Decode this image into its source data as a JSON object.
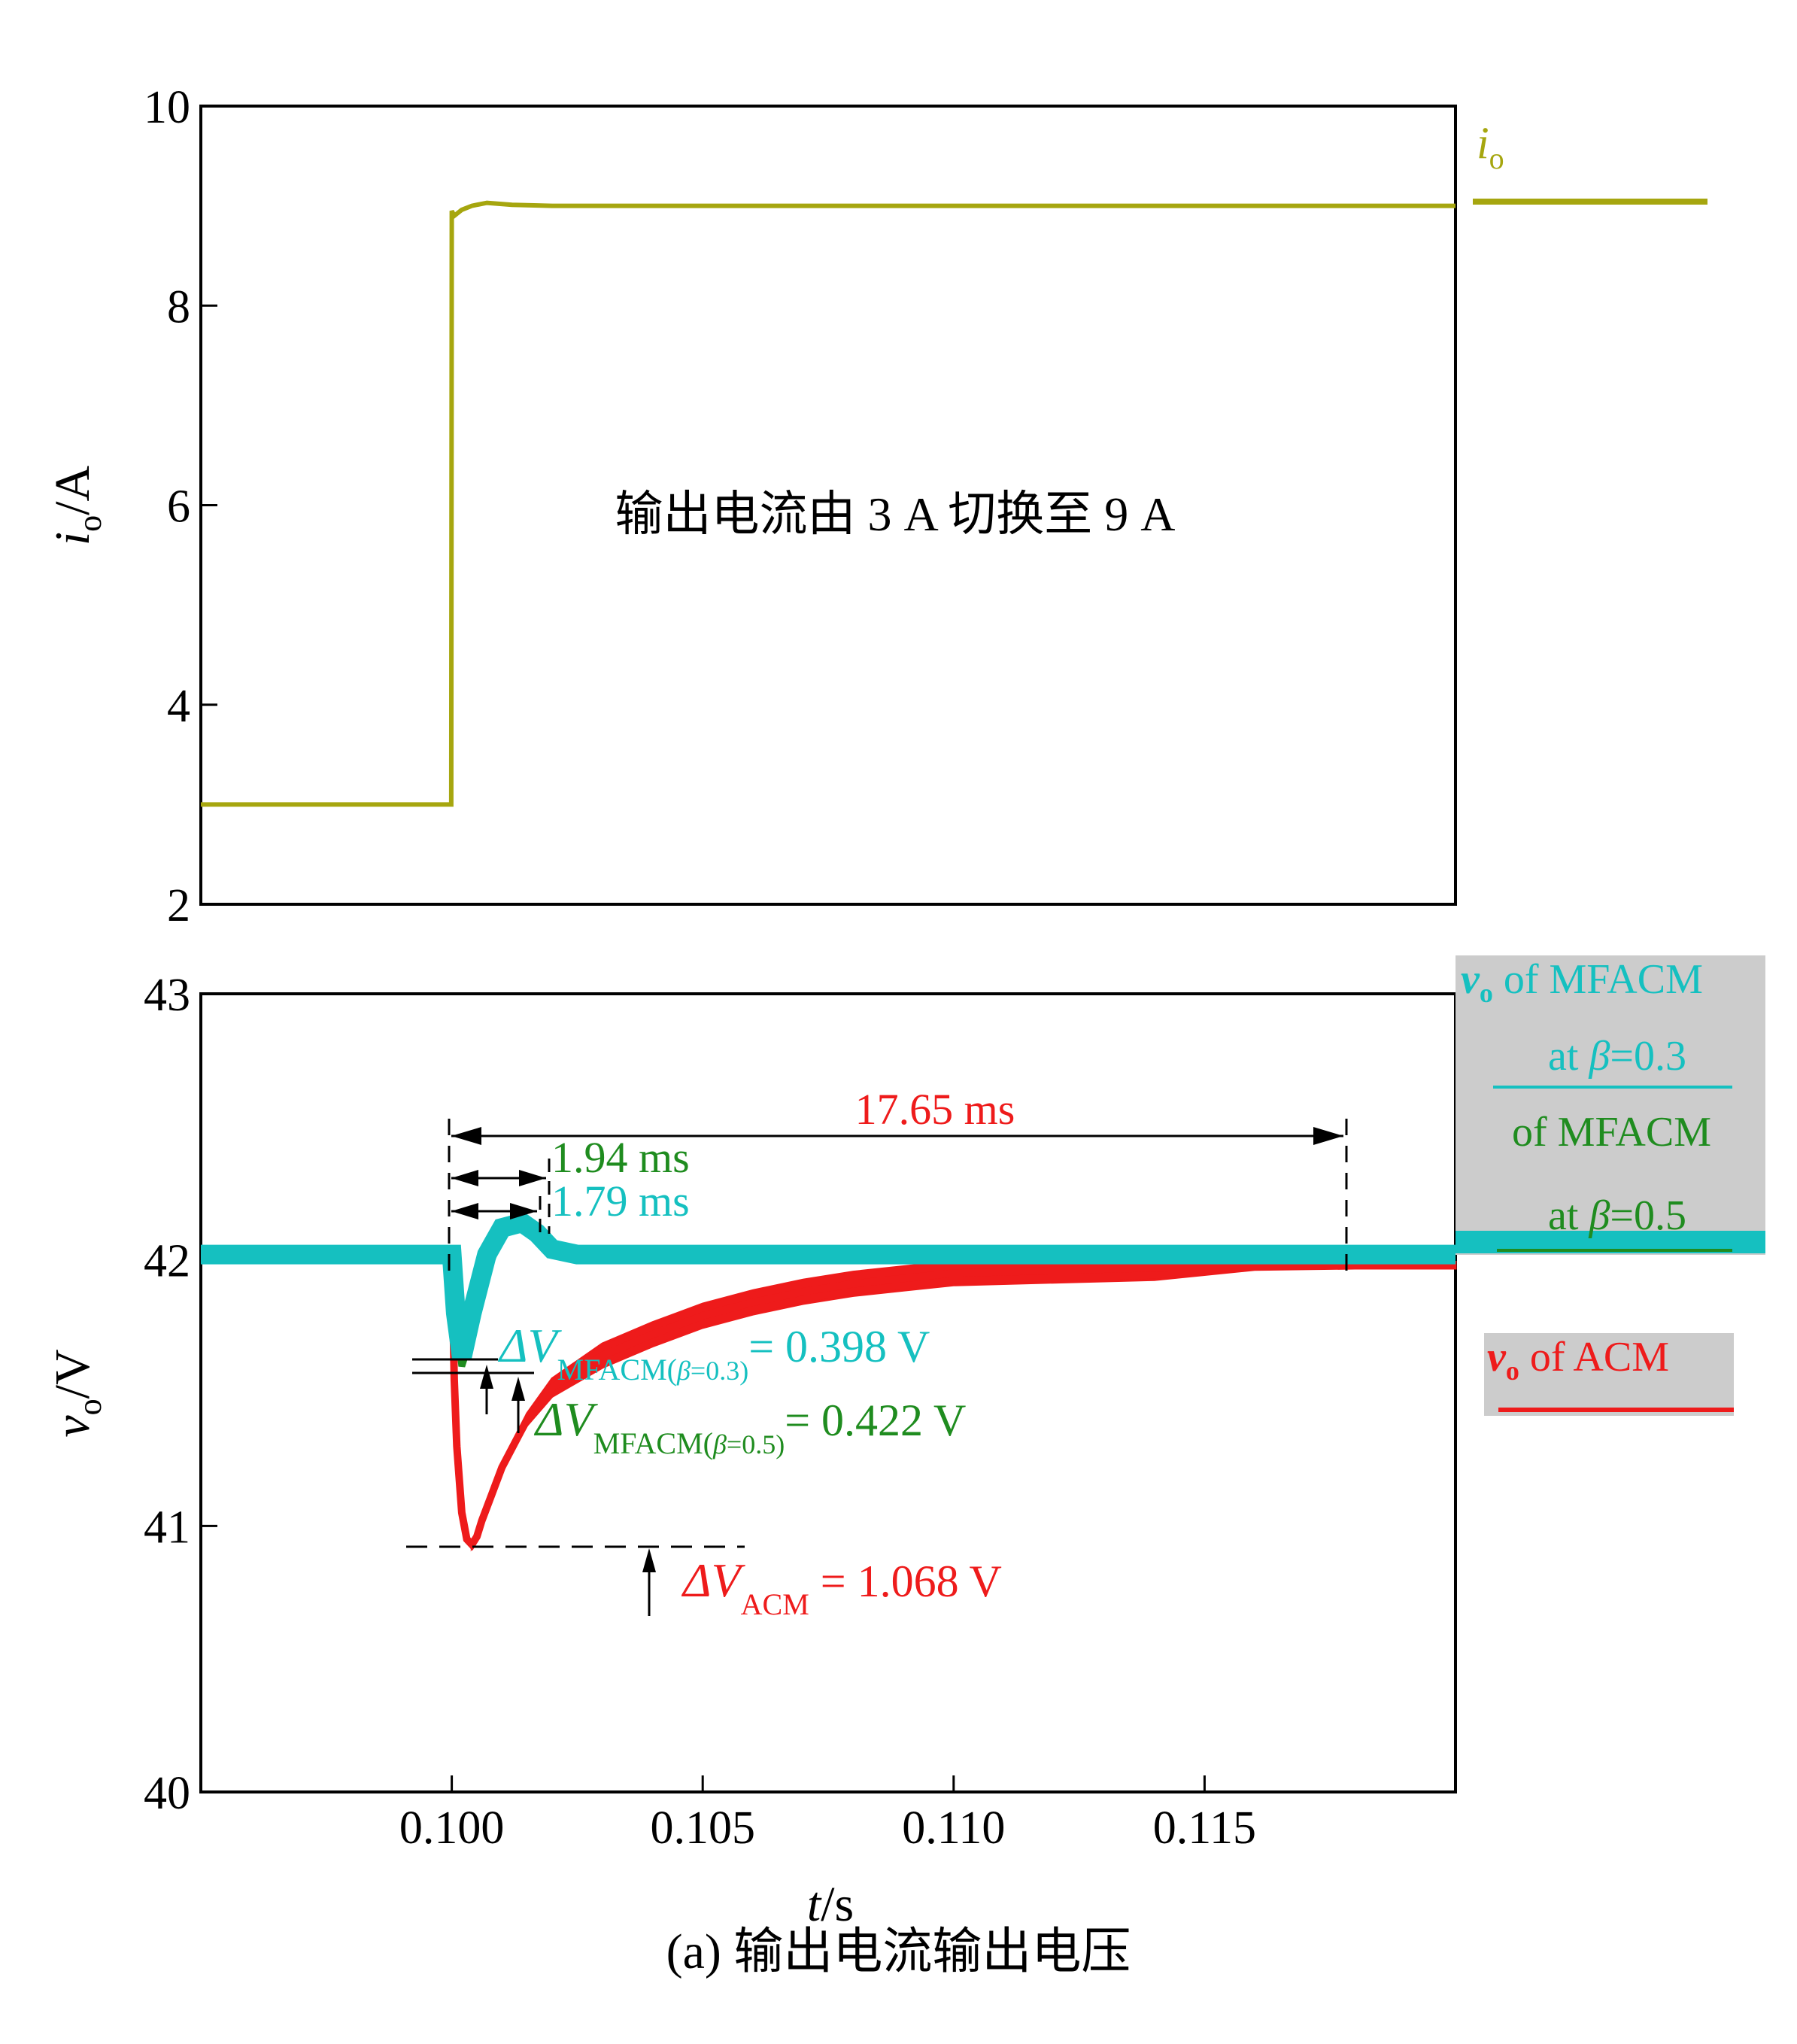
{
  "caption": "(a) 输出电流输出电压",
  "chart_data": [
    {
      "type": "line",
      "title": "",
      "xlabel": "",
      "ylabel_main": "i",
      "ylabel_sub": "o",
      "ylabel_unit": "/A",
      "xlim": [
        0.095,
        0.12
      ],
      "ylim": [
        2,
        10
      ],
      "yticks": [
        "2",
        "4",
        "6",
        "8",
        "10"
      ],
      "grid": false,
      "annotation": "输出电流由 3 A 切换至 9 A",
      "legend": {
        "placement": "top-right",
        "main": "i",
        "sub": "o"
      },
      "colors": {
        "io": "#a6a60f"
      },
      "series": [
        {
          "name": "io",
          "x": [
            0.095,
            0.09999,
            0.1,
            0.10005,
            0.1002,
            0.1004,
            0.1007,
            0.1012,
            0.102,
            0.12
          ],
          "y": [
            3.0,
            3.0,
            8.95,
            8.9,
            8.96,
            9.0,
            9.03,
            9.01,
            9.0,
            9.0
          ]
        }
      ]
    },
    {
      "type": "line",
      "title": "",
      "xlabel_main": "t",
      "xlabel_unit": "/s",
      "ylabel_main": "v",
      "ylabel_sub": "o",
      "ylabel_unit": "/V",
      "xlim": [
        0.095,
        0.12
      ],
      "ylim": [
        40,
        43
      ],
      "xticks": [
        "0.100",
        "0.105",
        "0.110",
        "0.115"
      ],
      "xtick_values": [
        0.1,
        0.105,
        0.11,
        0.115
      ],
      "yticks": [
        "40",
        "41",
        "42",
        "43"
      ],
      "grid": false,
      "colors": {
        "mfacm03": "#15c0c0",
        "mfacm05": "#1f8c1f",
        "acm": "#ee1b1b",
        "legend_bg": "#cccccc"
      },
      "legend": {
        "placement": "right",
        "entries": [
          {
            "sym": "v",
            "sub": "o",
            "rest": " of  MFACM",
            "line2": "at ",
            "beta": "β",
            "line2b": "=0.3"
          },
          {
            "sym": "",
            "sub": "",
            "rest": "of  MFACM",
            "line2": "at ",
            "beta": "β",
            "line2b": "=0.5"
          },
          {
            "sym": "v",
            "sub": "o",
            "rest": " of  ACM"
          }
        ]
      },
      "annotations": {
        "t_acm": "17.65 ms",
        "t_mf05": "1.94 ms",
        "t_mf03": "1.79 ms",
        "dv_mf03": {
          "prefix": "ΔV",
          "sub1": "MFACM(",
          "beta": "β",
          "sub2": "=0.3)",
          "value": "= 0.398 V"
        },
        "dv_mf05": {
          "prefix": "ΔV",
          "sub1": "MFACM(",
          "beta": "β",
          "sub2": "=0.5)",
          "value": "= 0.422 V"
        },
        "dv_acm": {
          "prefix": "ΔV",
          "sub1": "ACM",
          "value": " = 1.068 V"
        }
      },
      "series": [
        {
          "name": "mfacm03",
          "x": [
            0.095,
            0.1,
            0.10008,
            0.1002,
            0.1004,
            0.1007,
            0.101,
            0.1014,
            0.1017,
            0.102,
            0.1025,
            0.103,
            0.12
          ],
          "y": [
            42.02,
            42.02,
            41.8,
            41.63,
            41.8,
            42.02,
            42.12,
            42.14,
            42.1,
            42.04,
            42.02,
            42.02,
            42.02
          ]
        },
        {
          "name": "mfacm05",
          "x": [
            0.1,
            0.10008,
            0.1002,
            0.1004,
            0.1007,
            0.101,
            0.1014,
            0.1017,
            0.102,
            0.1025
          ],
          "y": [
            42.02,
            41.8,
            41.6,
            41.72,
            41.95,
            42.1,
            42.14,
            42.1,
            42.03,
            42.02
          ]
        },
        {
          "name": "acm",
          "x": [
            0.1,
            0.10005,
            0.1001,
            0.1002,
            0.1003,
            0.1004,
            0.1005,
            0.1006,
            0.1008,
            0.101,
            0.1015,
            0.102,
            0.103,
            0.104,
            0.105,
            0.106,
            0.107,
            0.108,
            0.109,
            0.11,
            0.112,
            0.114,
            0.116,
            0.118,
            0.12
          ],
          "y": [
            42.02,
            41.55,
            41.3,
            41.05,
            40.95,
            40.93,
            40.96,
            41.02,
            41.12,
            41.22,
            41.4,
            41.52,
            41.64,
            41.72,
            41.79,
            41.84,
            41.88,
            41.91,
            41.93,
            41.95,
            41.96,
            41.97,
            41.975,
            41.98,
            41.98
          ]
        }
      ]
    }
  ]
}
